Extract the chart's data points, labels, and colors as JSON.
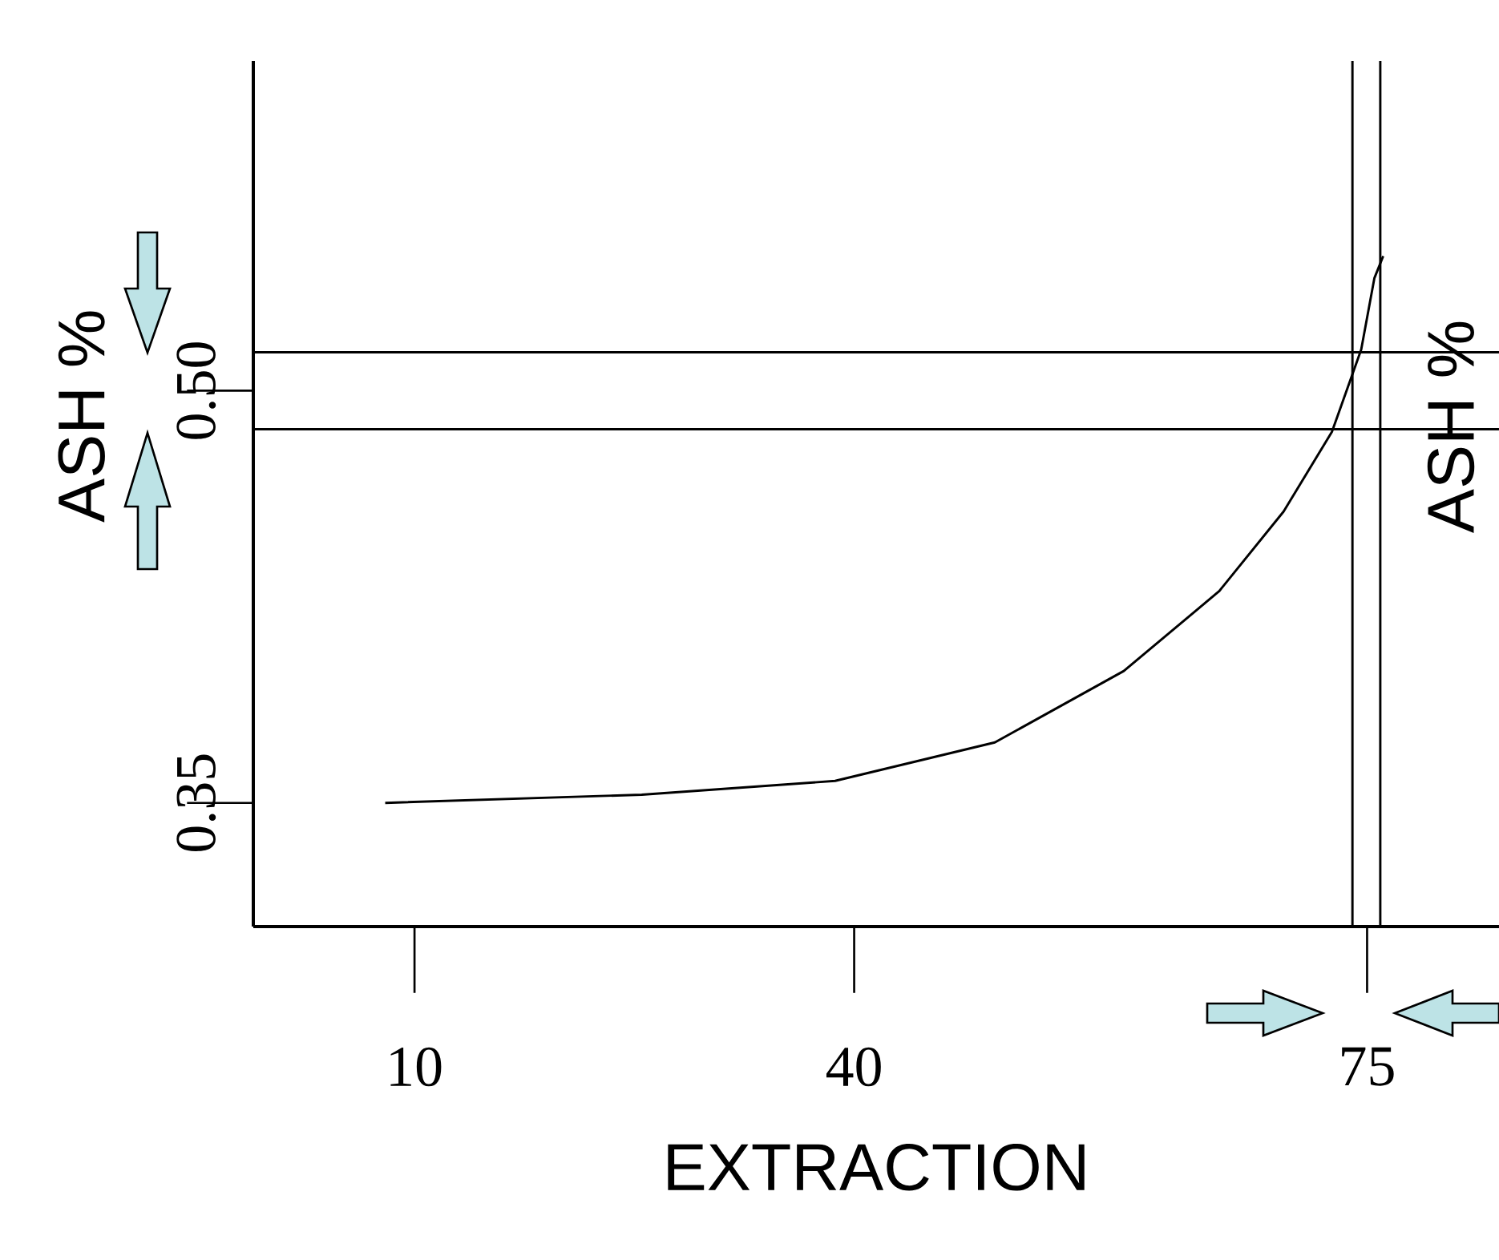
{
  "chart_data": {
    "type": "line",
    "xlabel": "EXTRACTION",
    "ylabel": "ASH %",
    "annotations": [
      "ASH %"
    ],
    "x": [
      8.0,
      25.5,
      38.7,
      49.6,
      58.4,
      64.9,
      69.3,
      72.6,
      74.6,
      75.5,
      76.1
    ],
    "series": [
      {
        "color": "#000000",
        "values": [
          0.35,
          0.353,
          0.358,
          0.372,
          0.398,
          0.427,
          0.456,
          0.485,
          0.515,
          0.541,
          0.549
        ]
      }
    ],
    "xlim": [
      -1,
      84
    ],
    "ylim": [
      0.305,
      0.62
    ],
    "xticks": [
      10,
      40,
      75
    ],
    "yticks": [
      0.35,
      {
        "value": 0.5,
        "label": "0.50"
      }
    ],
    "ref_lines": [
      {
        "axis": "y",
        "value": 0.514
      },
      {
        "axis": "y",
        "value": 0.486
      },
      {
        "axis": "x",
        "value": 74.0
      },
      {
        "axis": "x",
        "value": 75.9
      }
    ],
    "grid": false,
    "marker": "none",
    "line_style": "solid"
  }
}
